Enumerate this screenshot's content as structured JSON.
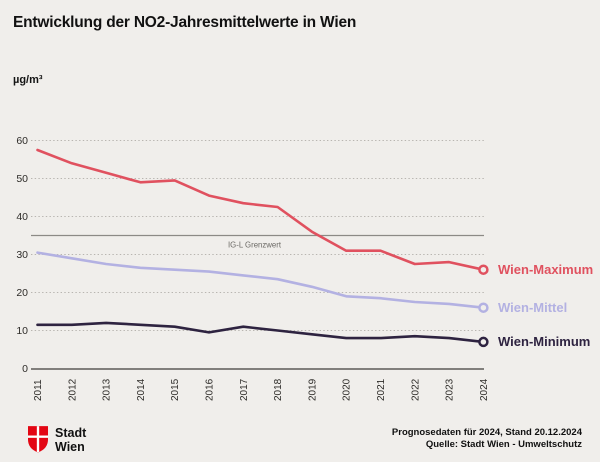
{
  "title": "Entwicklung der NO2-Jahresmittelwerte in Wien",
  "unit_label": "µg/m³",
  "chart_data": {
    "type": "line",
    "title": "Entwicklung der NO2-Jahresmittelwerte in Wien",
    "ylabel": "µg/m³",
    "x": [
      "2011",
      "2012",
      "2013",
      "2014",
      "2015",
      "2016",
      "2017",
      "2018",
      "2019",
      "2020",
      "2021",
      "2022",
      "2023",
      "2024"
    ],
    "series": [
      {
        "name": "Wien-Maximum",
        "color": "#e0515f",
        "values": [
          57.5,
          54,
          51.5,
          49,
          49.5,
          45.5,
          43.5,
          42.5,
          36,
          31,
          31,
          27.5,
          28,
          26
        ]
      },
      {
        "name": "Wien-Mittel",
        "color": "#b3b1e2",
        "values": [
          30.5,
          29,
          27.5,
          26.5,
          26,
          25.5,
          24.5,
          23.5,
          21.5,
          19,
          18.5,
          17.5,
          17,
          16
        ]
      },
      {
        "name": "Wien-Minimum",
        "color": "#2e2340",
        "values": [
          11.5,
          11.5,
          12,
          11.5,
          11,
          9.5,
          11,
          10,
          9,
          8,
          8,
          8.5,
          8,
          7
        ]
      }
    ],
    "ylim": [
      0,
      60
    ],
    "yticks": [
      0,
      10,
      20,
      30,
      40,
      50,
      60
    ],
    "grid": "horizontal-dotted",
    "legend_position": "right-of-line-ends",
    "reference_line": {
      "label": "IG-L Grenzwert",
      "value": 35
    }
  },
  "footer": {
    "logo_line1": "Stadt",
    "logo_line2": "Wien",
    "note_line1": "Prognosedaten für 2024, Stand 20.12.2024",
    "note_line2": "Quelle: Stadt Wien - Umweltschutz"
  },
  "colors": {
    "background": "#f0eeeb",
    "grid_dotted": "#b8b5b0",
    "reference_line": "#8c8a86",
    "reference_label": "#6b6965",
    "axis_line": "#3f3d3a",
    "tick_text": "#2e2c29",
    "logo_red": "#e30613"
  }
}
